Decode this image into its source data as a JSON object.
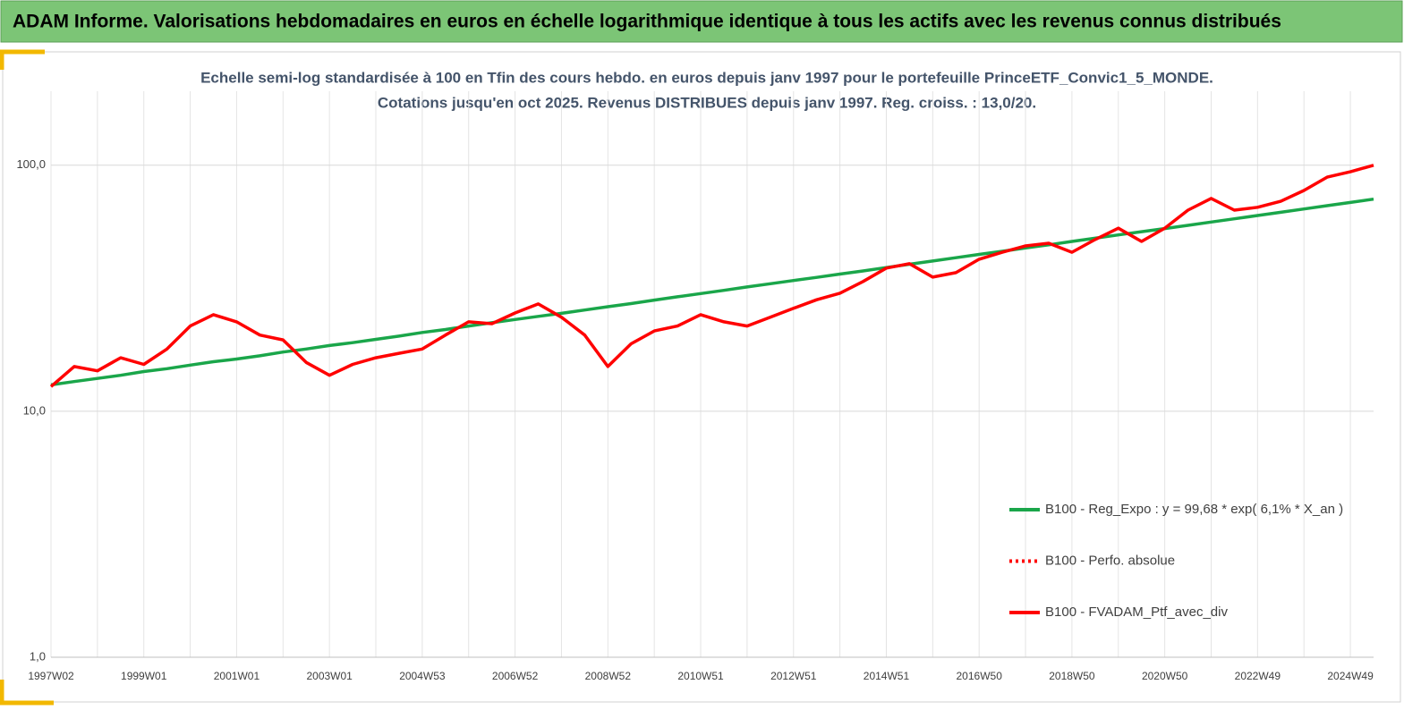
{
  "header": {
    "title": "ADAM Informe. Valorisations hebdomadaires en euros en échelle logarithmique identique à tous les actifs avec les revenus connus distribués"
  },
  "chart_data": {
    "type": "line",
    "title": "Echelle semi-log standardisée  à 100 en Tfin des cours hebdo.  en euros depuis janv 1997 pour le portefeuille PrinceETF_Convic1_5_MONDE.",
    "subtitle": "Cotations  jusqu'en oct 2025. Revenus DISTRIBUES depuis janv 1997. Reg. croiss. : 13,0/20.",
    "log_scale": true,
    "grid": true,
    "legend": "right",
    "categories": [
      "1997W02",
      null,
      null,
      null,
      "1999W01",
      null,
      null,
      null,
      "2001W01",
      null,
      null,
      null,
      "2003W01",
      null,
      null,
      null,
      "2004W53",
      null,
      null,
      null,
      "2006W52",
      null,
      null,
      null,
      "2008W52",
      null,
      null,
      null,
      "2010W51",
      null,
      null,
      null,
      "2012W51",
      null,
      null,
      null,
      "2014W51",
      null,
      null,
      null,
      "2016W50",
      null,
      null,
      null,
      "2018W50",
      null,
      null,
      null,
      "2020W50",
      null,
      null,
      null,
      "2022W49",
      null,
      null,
      null,
      "2024W49",
      null
    ],
    "ylim": [
      1,
      200
    ],
    "yticks": [
      {
        "value": 1,
        "label": "1,0"
      },
      {
        "value": 10,
        "label": "10,0"
      },
      {
        "value": 100,
        "label": "100,0"
      }
    ],
    "series": [
      {
        "name": "B100 - Reg_Expo : y = 99,68 * exp( 6,1% *  X_an )",
        "color": "#1aa64a",
        "line_style": "solid",
        "values": [
          12.8,
          13.2,
          13.6,
          14.0,
          14.5,
          14.9,
          15.4,
          15.9,
          16.3,
          16.8,
          17.4,
          17.9,
          18.5,
          19.0,
          19.6,
          20.2,
          20.9,
          21.5,
          22.2,
          22.9,
          23.6,
          24.3,
          25.0,
          25.8,
          26.6,
          27.4,
          28.3,
          29.2,
          30.1,
          31.0,
          32.0,
          33.0,
          34.0,
          35.0,
          36.1,
          37.2,
          38.4,
          39.6,
          40.8,
          42.1,
          43.4,
          44.7,
          46.1,
          47.5,
          49.0,
          50.5,
          52.1,
          53.7,
          55.3,
          57.0,
          58.8,
          60.6,
          62.5,
          64.4,
          66.4,
          68.5,
          70.6,
          72.8
        ]
      },
      {
        "name": "B100 - Perfo. absolue",
        "color": "#ff0000",
        "line_style": "dotted",
        "values": [
          null,
          null,
          null,
          null,
          null,
          null,
          null,
          null,
          null,
          null,
          null,
          null,
          null,
          null,
          null,
          null,
          null,
          null,
          null,
          null,
          null,
          null,
          null,
          null,
          null,
          null,
          null,
          null,
          null,
          null,
          null,
          null,
          null,
          null,
          null,
          null,
          null,
          null,
          null,
          null,
          null,
          null,
          null,
          null,
          null,
          null,
          null,
          null,
          null,
          null,
          null,
          null,
          null,
          null,
          null,
          null,
          null,
          null
        ]
      },
      {
        "name": "B100 - FVADAM_Ptf_avec_div",
        "color": "#ff0000",
        "line_style": "solid",
        "values": [
          12.6,
          15.2,
          14.6,
          16.5,
          15.5,
          17.9,
          22.2,
          24.7,
          23.1,
          20.4,
          19.5,
          15.8,
          14.0,
          15.5,
          16.5,
          17.2,
          17.9,
          20.4,
          23.1,
          22.7,
          25.1,
          27.3,
          24.1,
          20.4,
          15.2,
          18.8,
          21.2,
          22.2,
          24.7,
          23.1,
          22.2,
          24.1,
          26.2,
          28.4,
          30.2,
          33.7,
          38.2,
          39.8,
          35.1,
          36.6,
          41.5,
          44.3,
          47.0,
          48.2,
          44.3,
          49.9,
          55.5,
          49.0,
          55.5,
          65.7,
          73.3,
          65.7,
          67.5,
          71.4,
          79.0,
          89.5,
          94.1,
          100
        ]
      }
    ]
  }
}
